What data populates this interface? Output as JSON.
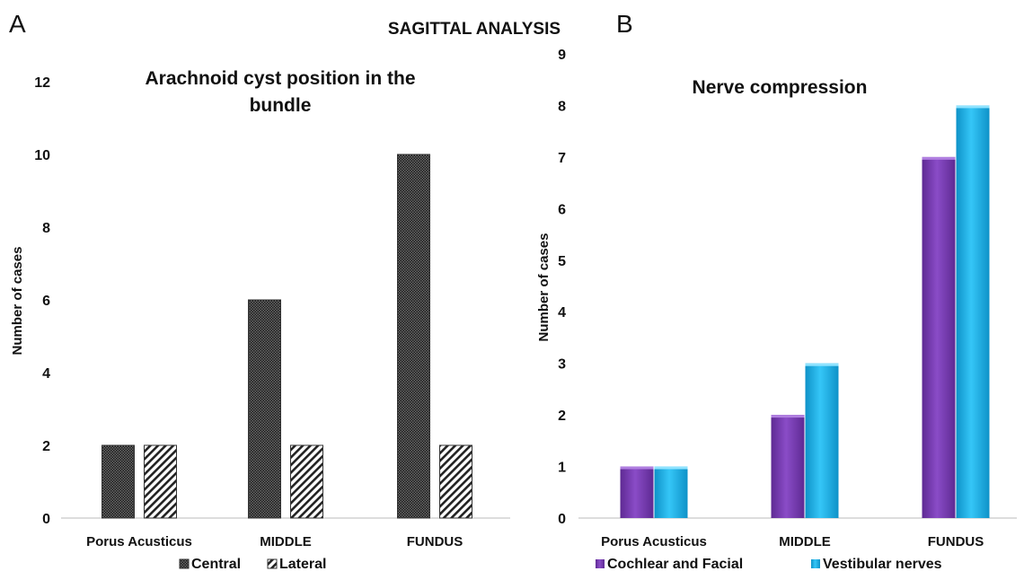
{
  "figure": {
    "main_title": "SAGITTAL ANALYSIS",
    "panel_a": "A",
    "panel_b": "B"
  },
  "chart_data": [
    {
      "type": "bar",
      "title_lines": [
        "Arachnoid cyst position in the",
        "bundle"
      ],
      "ylabel": "Number of cases",
      "xlabel": "",
      "categories": [
        "Porus Acusticus",
        "MIDDLE",
        "FUNDUS"
      ],
      "ylim": [
        0,
        12
      ],
      "yticks": [
        0,
        2,
        4,
        6,
        8,
        10,
        12
      ],
      "grid": false,
      "legend_position": "bottom",
      "series": [
        {
          "name": "Central",
          "values": [
            2,
            6,
            10
          ],
          "color": "#3a3a3a",
          "pattern": "dots"
        },
        {
          "name": "Lateral",
          "values": [
            2,
            2,
            2
          ],
          "color": "#3a3a3a",
          "pattern": "diagonal"
        }
      ]
    },
    {
      "type": "bar",
      "title": "Nerve compression",
      "ylabel": "Number of cases",
      "xlabel": "",
      "categories": [
        "Porus Acusticus",
        "MIDDLE",
        "FUNDUS"
      ],
      "ylim": [
        0,
        9
      ],
      "yticks": [
        0,
        1,
        2,
        3,
        4,
        5,
        6,
        7,
        8,
        9
      ],
      "grid": false,
      "legend_position": "bottom",
      "series": [
        {
          "name": "Cochlear and Facial",
          "values": [
            1,
            2,
            7
          ],
          "color": "#7b3fb5"
        },
        {
          "name": "Vestibular nerves",
          "values": [
            1,
            3,
            8
          ],
          "color": "#1fb7ef"
        }
      ]
    }
  ]
}
